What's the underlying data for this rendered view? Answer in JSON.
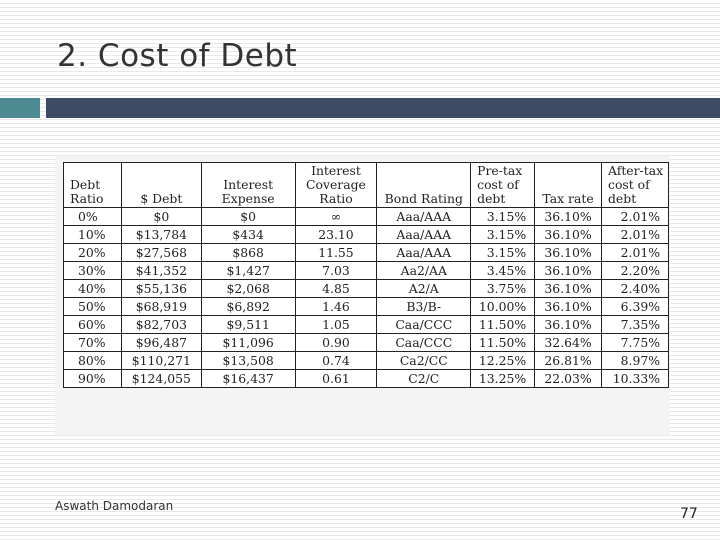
{
  "slide": {
    "title": "2. Cost of Debt",
    "author": "Aswath Damodaran",
    "page_number": "77",
    "accent_colors": {
      "left_bar": "#4e8a92",
      "right_bar": "#3d4a63"
    }
  },
  "table": {
    "headers": [
      [
        "Debt",
        "Ratio"
      ],
      [
        "$ Debt"
      ],
      [
        "Interest",
        "Expense"
      ],
      [
        "Interest",
        "Coverage",
        "Ratio"
      ],
      [
        "Bond Rating"
      ],
      [
        "Pre-tax",
        "cost of",
        "debt"
      ],
      [
        "Tax rate"
      ],
      [
        "After-tax",
        "cost of",
        "debt"
      ]
    ],
    "rows": [
      [
        "0%",
        "$0",
        "$0",
        "∞",
        "Aaa/AAA",
        "3.15%",
        "36.10%",
        "2.01%"
      ],
      [
        "10%",
        "$13,784",
        "$434",
        "23.10",
        "Aaa/AAA",
        "3.15%",
        "36.10%",
        "2.01%"
      ],
      [
        "20%",
        "$27,568",
        "$868",
        "11.55",
        "Aaa/AAA",
        "3.15%",
        "36.10%",
        "2.01%"
      ],
      [
        "30%",
        "$41,352",
        "$1,427",
        "7.03",
        "Aa2/AA",
        "3.45%",
        "36.10%",
        "2.20%"
      ],
      [
        "40%",
        "$55,136",
        "$2,068",
        "4.85",
        "A2/A",
        "3.75%",
        "36.10%",
        "2.40%"
      ],
      [
        "50%",
        "$68,919",
        "$6,892",
        "1.46",
        "B3/B-",
        "10.00%",
        "36.10%",
        "6.39%"
      ],
      [
        "60%",
        "$82,703",
        "$9,511",
        "1.05",
        "Caa/CCC",
        "11.50%",
        "36.10%",
        "7.35%"
      ],
      [
        "70%",
        "$96,487",
        "$11,096",
        "0.90",
        "Caa/CCC",
        "11.50%",
        "32.64%",
        "7.75%"
      ],
      [
        "80%",
        "$110,271",
        "$13,508",
        "0.74",
        "Ca2/CC",
        "12.25%",
        "26.81%",
        "8.97%"
      ],
      [
        "90%",
        "$124,055",
        "$16,437",
        "0.61",
        "C2/C",
        "13.25%",
        "22.03%",
        "10.33%"
      ]
    ]
  }
}
